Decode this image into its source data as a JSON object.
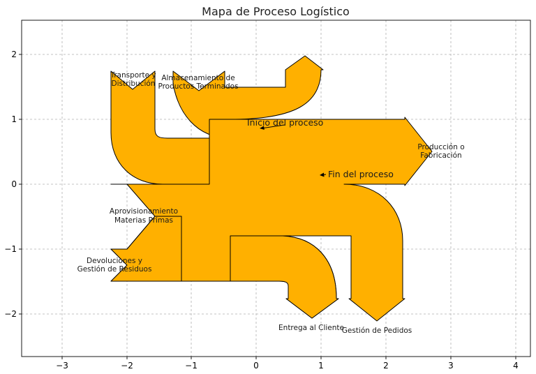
{
  "title": "Mapa de Proceso Logístico",
  "axes": {
    "x_ticks": [
      "−3",
      "−2",
      "−1",
      "0",
      "1",
      "2",
      "3",
      "4"
    ],
    "y_ticks": [
      "2",
      "1",
      "0",
      "−1",
      "−2"
    ]
  },
  "flows": {
    "in_main": [
      "Aprovisionamiento",
      "Materias Primas"
    ],
    "in_returns": [
      "Devoluciones y",
      "Gestión de Residuos"
    ],
    "out_production": [
      "Producción o",
      "Fabricación"
    ],
    "out_orders": "Gestión de Pedidos",
    "out_delivery": "Entrega al Cliente",
    "fb_transport": [
      "Transporte y",
      "Distribución"
    ],
    "fb_storage": [
      "Almacenamiento de",
      "Productos Terminados"
    ]
  },
  "annotations": {
    "start": "Inicio del proceso",
    "end": "Fin del proceso"
  },
  "colors": {
    "flow": "#FFB000",
    "edge": "#000000"
  }
}
